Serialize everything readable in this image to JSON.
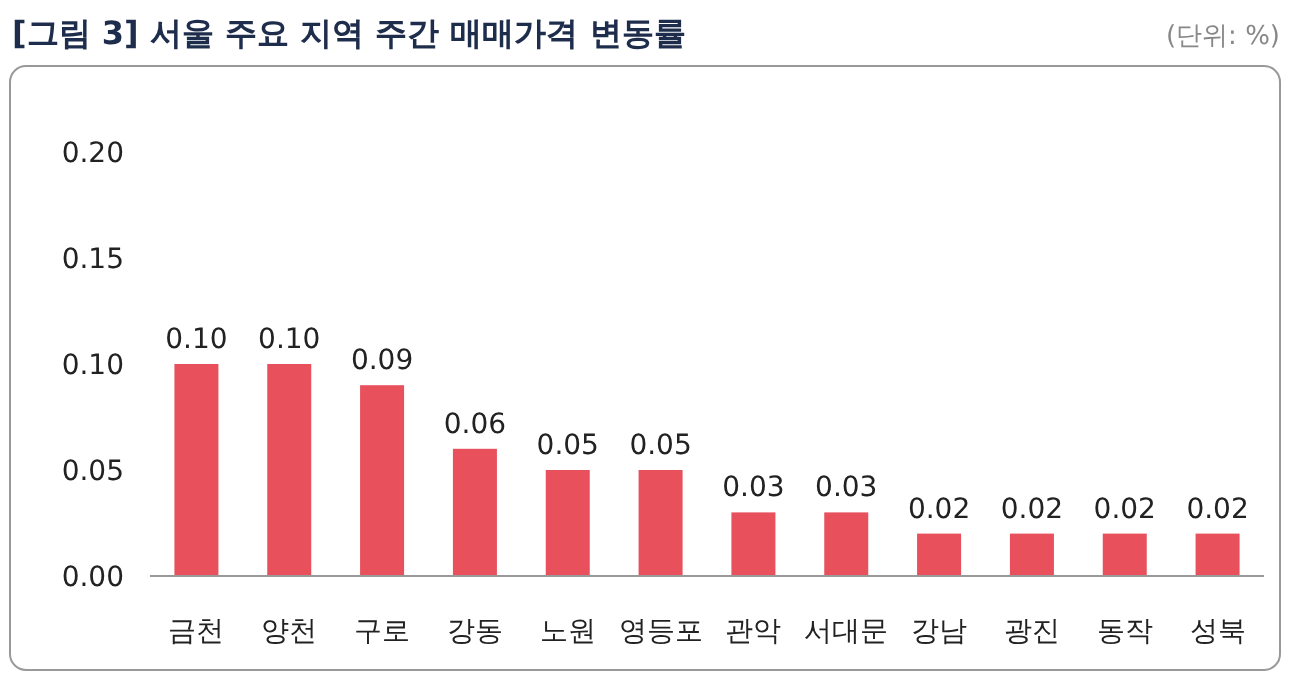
{
  "chart_data": {
    "type": "bar",
    "title": "[그림 3] 서울 주요 지역 주간 매매가격 변동률",
    "annotations": [
      "(단위: %)"
    ],
    "categories": [
      "금천",
      "양천",
      "구로",
      "강동",
      "노원",
      "영등포",
      "관악",
      "서대문",
      "강남",
      "광진",
      "동작",
      "성북"
    ],
    "values": [
      0.1,
      0.1,
      0.09,
      0.06,
      0.05,
      0.05,
      0.03,
      0.03,
      0.02,
      0.02,
      0.02,
      0.02
    ],
    "value_labels": [
      "0.10",
      "0.10",
      "0.09",
      "0.06",
      "0.05",
      "0.05",
      "0.03",
      "0.03",
      "0.02",
      "0.02",
      "0.02",
      "0.02"
    ],
    "color": "#e8505b",
    "ylim": [
      0,
      0.2
    ],
    "yticks": [
      {
        "value": 0,
        "label": "0.00"
      },
      {
        "value": 0.05,
        "label": "0.05"
      },
      {
        "value": 0.1,
        "label": "0.10"
      },
      {
        "value": 0.15,
        "label": "0.15"
      },
      {
        "value": 0.2,
        "label": "0.20"
      }
    ],
    "grid": false
  }
}
